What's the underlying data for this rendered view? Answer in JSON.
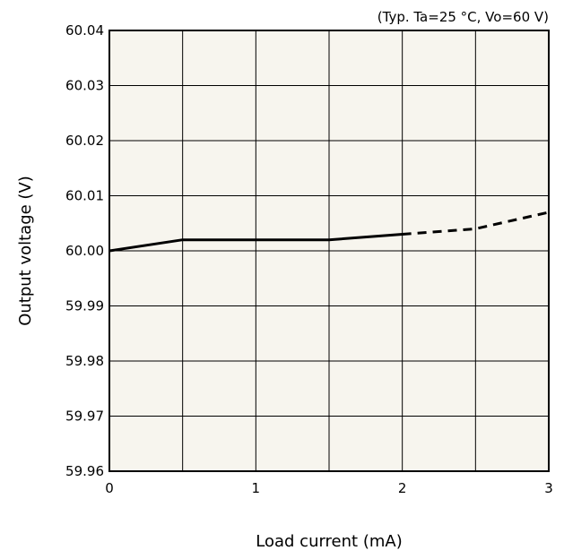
{
  "chart_data": {
    "type": "line",
    "title": "",
    "annotation": "(Typ. Ta=25 °C, Vo=60 V)",
    "xlabel": "Load current (mA)",
    "ylabel": "Output voltage (V)",
    "xlim": [
      0,
      3
    ],
    "ylim": [
      59.96,
      60.04
    ],
    "grid": true,
    "x_ticks": [
      0,
      0.5,
      1,
      1.5,
      2,
      2.5,
      3
    ],
    "y_ticks": [
      59.96,
      59.97,
      59.98,
      59.99,
      60.0,
      60.01,
      60.02,
      60.03,
      60.04
    ],
    "x_tick_labels": [
      "0",
      "",
      "1",
      "",
      "2",
      "",
      "3"
    ],
    "y_tick_labels": [
      "59.96",
      "59.97",
      "59.98",
      "59.99",
      "60.00",
      "60.01",
      "60.02",
      "60.03",
      "60.04"
    ],
    "series": [
      {
        "style": "solid",
        "color": "#000000",
        "x": [
          0,
          0.5,
          1.0,
          1.5,
          2.0
        ],
        "y": [
          60.0,
          60.002,
          60.002,
          60.002,
          60.003
        ]
      },
      {
        "style": "dashed",
        "color": "#000000",
        "x": [
          2.0,
          2.5,
          3.0
        ],
        "y": [
          60.003,
          60.004,
          60.007
        ]
      }
    ],
    "plot_background": "#f7f5ee"
  }
}
